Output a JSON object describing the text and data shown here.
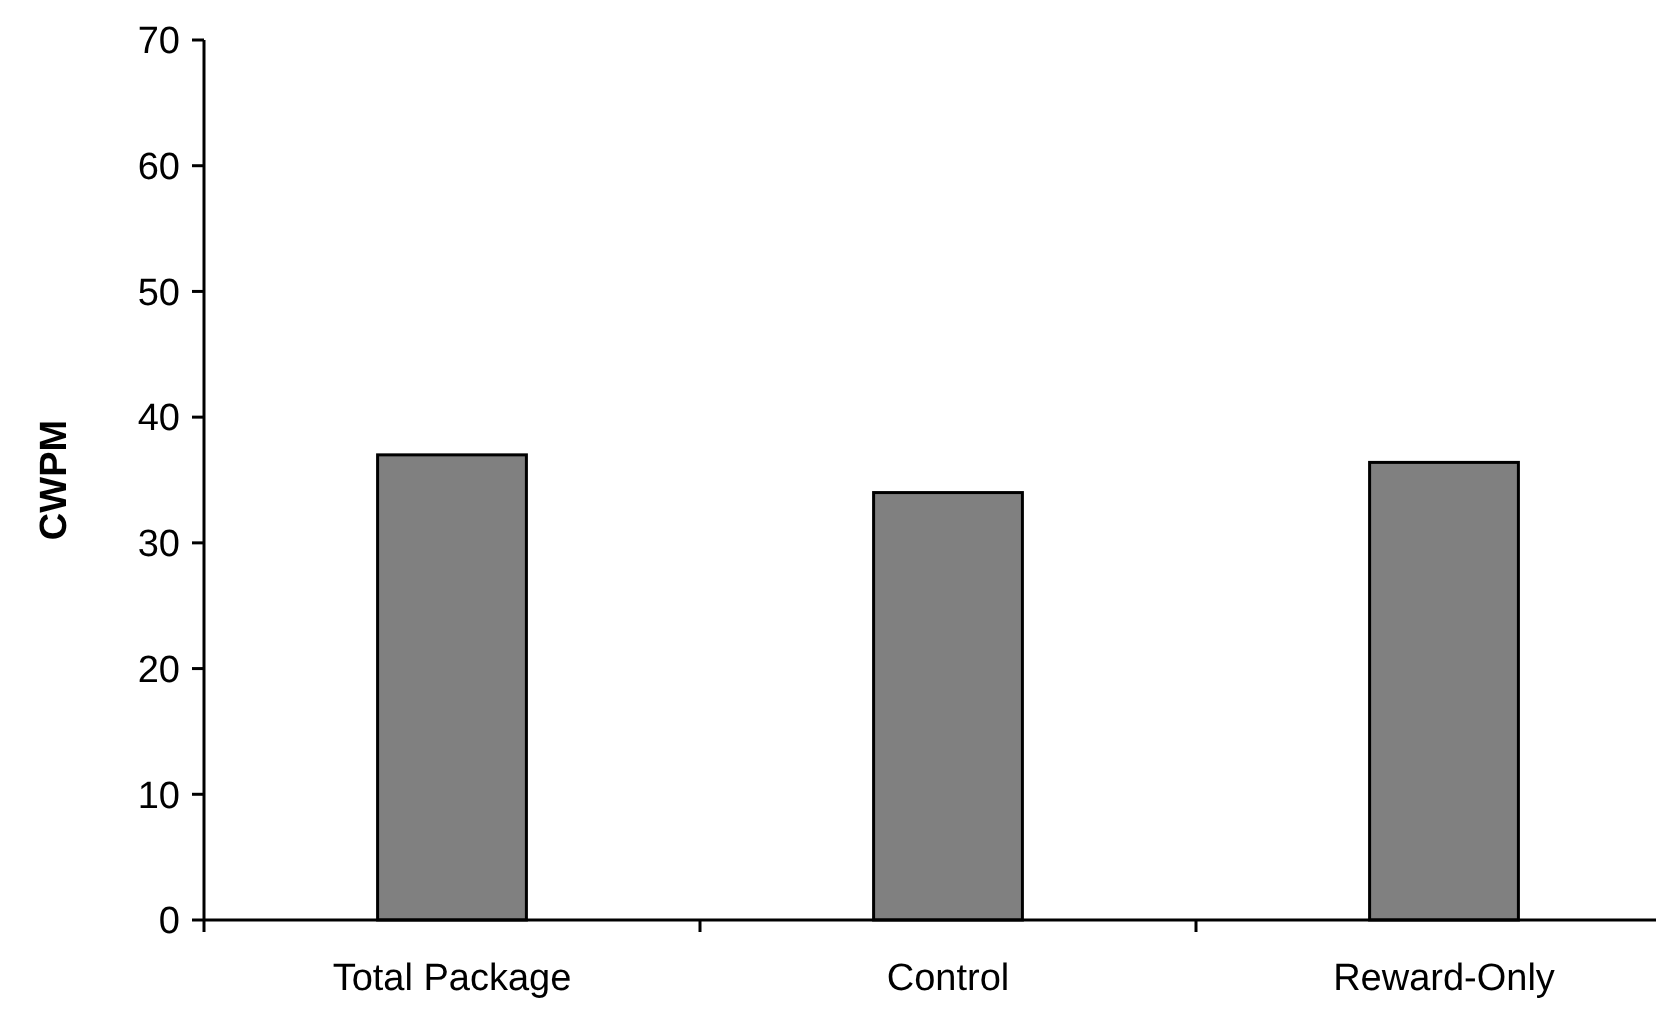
{
  "chart_data": {
    "type": "bar",
    "ylabel": "CWPM",
    "categories": [
      "Total Package",
      "Control",
      "Reward-Only"
    ],
    "values": [
      37,
      34,
      36.4
    ],
    "color": "#808080",
    "ylim": [
      0,
      70
    ],
    "yticks": [
      0,
      10,
      20,
      30,
      40,
      50,
      60,
      70
    ],
    "grid": false
  }
}
